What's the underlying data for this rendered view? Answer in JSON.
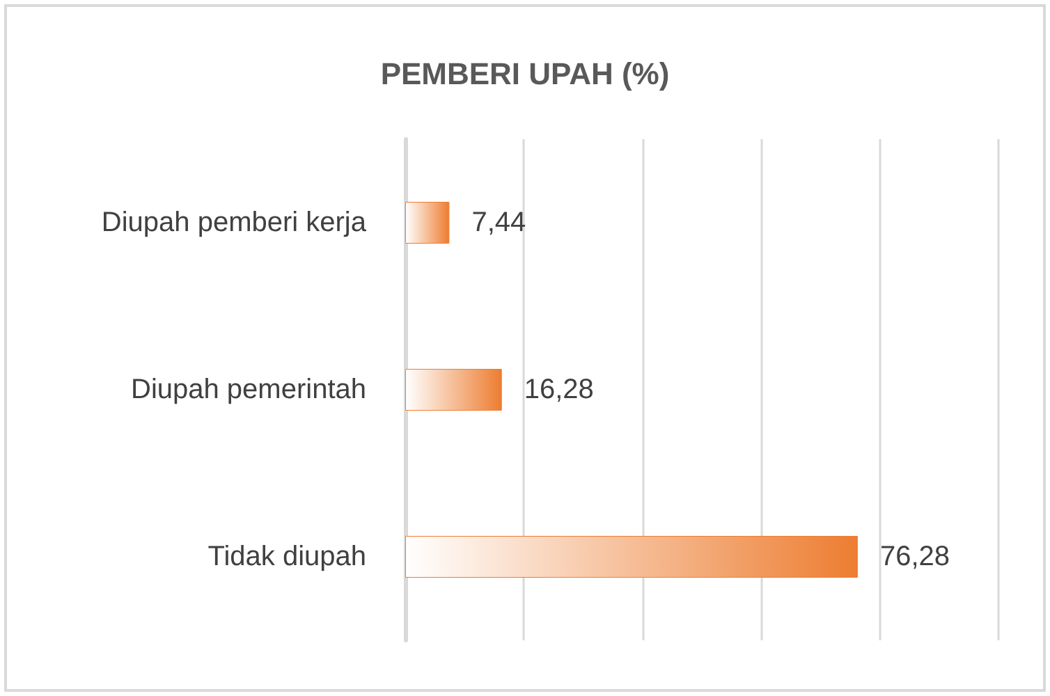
{
  "chart_data": {
    "type": "bar",
    "orientation": "horizontal",
    "title": "PEMBERI UPAH (%)",
    "categories": [
      "Diupah pemberi kerja",
      "Diupah pemerintah",
      "Tidak diupah"
    ],
    "values": [
      7.44,
      16.28,
      76.28
    ],
    "value_labels": [
      "7,44",
      "16,28",
      "76,28"
    ],
    "color": "#ed7d31",
    "xlim": [
      0,
      100
    ],
    "xticks": [
      {
        "value": 0,
        "label": null
      },
      {
        "value": 20,
        "label": null
      },
      {
        "value": 40,
        "label": null
      },
      {
        "value": 60,
        "label": null
      },
      {
        "value": 80,
        "label": null
      },
      {
        "value": 100,
        "label": null
      }
    ],
    "tick_labels": "y",
    "grid": "x"
  }
}
